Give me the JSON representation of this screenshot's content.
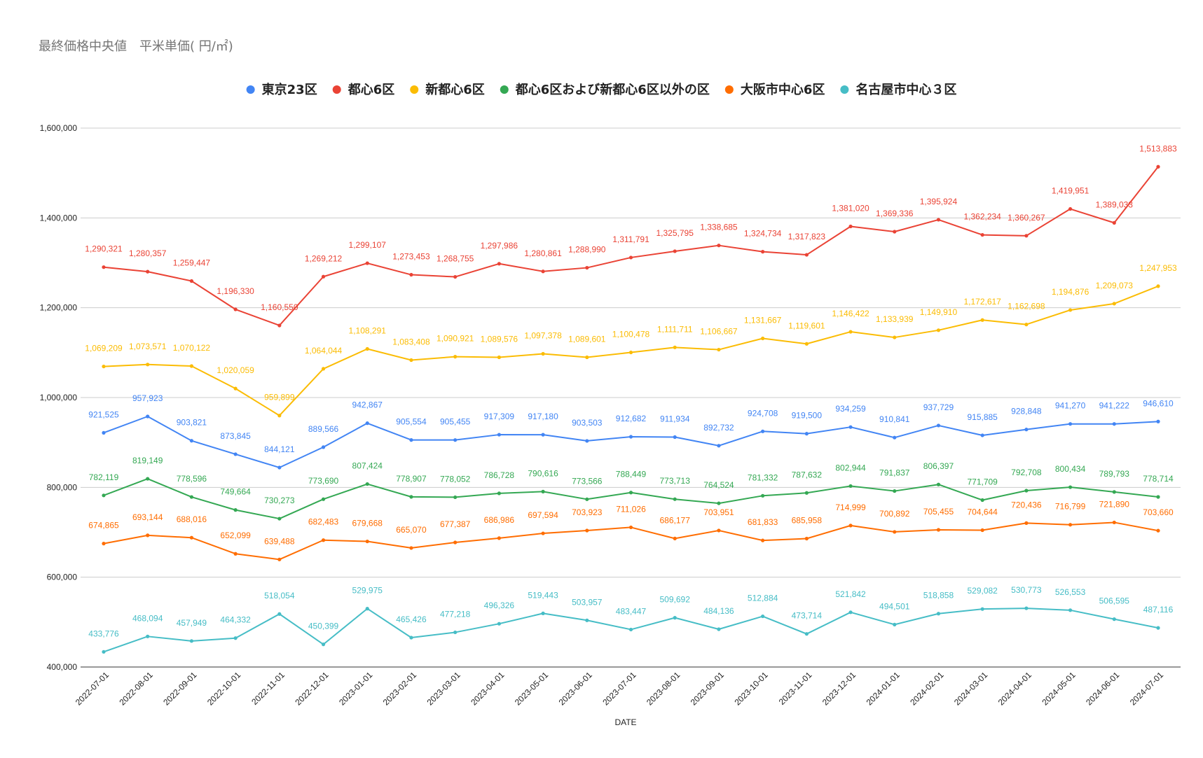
{
  "chart_data": {
    "type": "line",
    "title": "最終価格中央値　平米単価(  円/㎡)",
    "xlabel": "DATE",
    "ylabel": "",
    "ylim": [
      400000,
      1600000
    ],
    "yticks": [
      400000,
      600000,
      800000,
      1000000,
      1200000,
      1400000,
      1600000
    ],
    "ytick_labels": [
      "400,000",
      "600,000",
      "800,000",
      "1,000,000",
      "1,200,000",
      "1,400,000",
      "1,600,000"
    ],
    "grid": true,
    "legend": "top-center",
    "categories": [
      "2022-07-01",
      "2022-08-01",
      "2022-09-01",
      "2022-10-01",
      "2022-11-01",
      "2022-12-01",
      "2023-01-01",
      "2023-02-01",
      "2023-03-01",
      "2023-04-01",
      "2023-05-01",
      "2023-06-01",
      "2023-07-01",
      "2023-08-01",
      "2023-09-01",
      "2023-10-01",
      "2023-11-01",
      "2023-12-01",
      "2024-01-01",
      "2024-02-01",
      "2024-03-01",
      "2024-04-01",
      "2024-05-01",
      "2024-06-01",
      "2024-07-01"
    ],
    "series": [
      {
        "name": "東京23区",
        "color": "#4285f4",
        "values": [
          921525,
          957923,
          903821,
          873845,
          844121,
          889566,
          942867,
          905554,
          905455,
          917309,
          917180,
          903503,
          912682,
          911934,
          892732,
          924708,
          919500,
          934259,
          910841,
          937729,
          915885,
          928848,
          941270,
          941222,
          946610
        ]
      },
      {
        "name": "都心6区",
        "color": "#ea4335",
        "values": [
          1290321,
          1280357,
          1259447,
          1196330,
          1160550,
          1269212,
          1299107,
          1273453,
          1268755,
          1297986,
          1280861,
          1288990,
          1311791,
          1325795,
          1338685,
          1324734,
          1317823,
          1381020,
          1369336,
          1395924,
          1362234,
          1360267,
          1419951,
          1389033,
          1513883
        ]
      },
      {
        "name": "新都心6区",
        "color": "#fbbc04",
        "values": [
          1069209,
          1073571,
          1070122,
          1020059,
          959899,
          1064044,
          1108291,
          1083408,
          1090921,
          1089576,
          1097378,
          1089601,
          1100478,
          1111711,
          1106667,
          1131667,
          1119601,
          1146422,
          1133939,
          1149910,
          1172617,
          1162698,
          1194876,
          1209073,
          1247953
        ]
      },
      {
        "name": "都心6区および新都心6区以外の区",
        "color": "#34a853",
        "values": [
          782119,
          819149,
          778596,
          749664,
          730273,
          773690,
          807424,
          778907,
          778052,
          786728,
          790616,
          773566,
          788449,
          773713,
          764524,
          781332,
          787632,
          802944,
          791837,
          806397,
          771709,
          792708,
          800434,
          789793,
          778714
        ]
      },
      {
        "name": "大阪市中心6区",
        "color": "#ff6d01",
        "values": [
          674865,
          693144,
          688016,
          652099,
          639488,
          682483,
          679668,
          665070,
          677387,
          686986,
          697594,
          703923,
          711026,
          686177,
          703951,
          681833,
          685958,
          714999,
          700892,
          705455,
          704644,
          720436,
          716799,
          721890,
          703660
        ]
      },
      {
        "name": "名古屋市中心３区",
        "color": "#46bdc6",
        "values": [
          433776,
          468094,
          457949,
          464332,
          518054,
          450399,
          529975,
          465426,
          477218,
          496326,
          519443,
          503957,
          483447,
          509692,
          484136,
          512884,
          473714,
          521842,
          494501,
          518858,
          529082,
          530773,
          526553,
          506595,
          487116
        ]
      }
    ]
  }
}
